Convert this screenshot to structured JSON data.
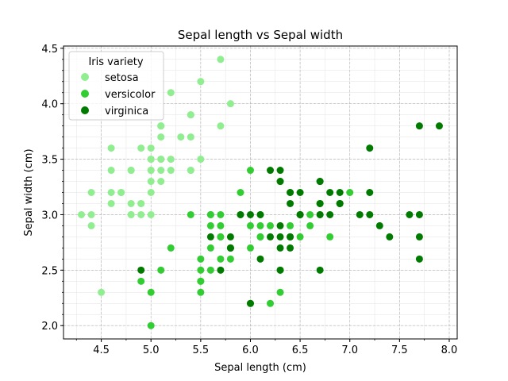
{
  "chart_data": {
    "type": "scatter",
    "title": "Sepal length vs Sepal width",
    "xlabel": "Sepal length (cm)",
    "ylabel": "Sepal width (cm)",
    "xlim": [
      4.12,
      8.08
    ],
    "ylim": [
      1.88,
      4.52
    ],
    "x_ticks": [
      4.5,
      5.0,
      5.5,
      6.0,
      6.5,
      7.0,
      7.5,
      8.0
    ],
    "x_tick_labels": [
      "4.5",
      "5.0",
      "5.5",
      "6.0",
      "6.5",
      "7.0",
      "7.5",
      "8.0"
    ],
    "y_ticks": [
      2.0,
      2.5,
      3.0,
      3.5,
      4.0,
      4.5
    ],
    "y_tick_labels": [
      "2.0",
      "2.5",
      "3.0",
      "3.5",
      "4.0",
      "4.5"
    ],
    "grid": true,
    "legend": {
      "title": "Iris variety",
      "placement": "upper-left"
    },
    "series": [
      {
        "name": "setosa",
        "color": "#90ee90",
        "x": [
          5.1,
          4.9,
          4.7,
          4.6,
          5.0,
          5.4,
          4.6,
          5.0,
          4.4,
          4.9,
          5.4,
          4.8,
          4.8,
          4.3,
          5.8,
          5.7,
          5.4,
          5.1,
          5.7,
          5.1,
          5.4,
          5.1,
          4.6,
          5.1,
          4.8,
          5.0,
          5.0,
          5.2,
          5.2,
          4.7,
          4.8,
          5.4,
          5.2,
          5.5,
          4.9,
          5.0,
          5.5,
          4.9,
          4.4,
          5.1,
          5.0,
          4.5,
          4.4,
          5.0,
          5.1,
          4.8,
          5.1,
          4.6,
          5.3,
          5.0
        ],
        "y": [
          3.5,
          3.0,
          3.2,
          3.1,
          3.6,
          3.9,
          3.4,
          3.4,
          2.9,
          3.1,
          3.7,
          3.4,
          3.0,
          3.0,
          4.0,
          4.4,
          3.9,
          3.5,
          3.8,
          3.8,
          3.4,
          3.7,
          3.6,
          3.3,
          3.4,
          3.0,
          3.4,
          3.5,
          3.4,
          3.2,
          3.1,
          3.4,
          4.1,
          4.2,
          3.1,
          3.2,
          3.5,
          3.6,
          3.0,
          3.4,
          3.5,
          2.3,
          3.2,
          3.5,
          3.8,
          3.0,
          3.8,
          3.2,
          3.7,
          3.3
        ]
      },
      {
        "name": "versicolor",
        "color": "#32cd32",
        "x": [
          7.0,
          6.4,
          6.9,
          5.5,
          6.5,
          5.7,
          6.3,
          4.9,
          6.6,
          5.2,
          5.0,
          5.9,
          6.0,
          6.1,
          5.6,
          6.7,
          5.6,
          5.8,
          6.2,
          5.6,
          5.9,
          6.1,
          6.3,
          6.1,
          6.4,
          6.6,
          6.8,
          6.7,
          6.0,
          5.7,
          5.5,
          5.5,
          5.8,
          6.0,
          5.4,
          6.0,
          6.7,
          6.3,
          5.6,
          5.5,
          5.5,
          6.1,
          5.8,
          5.0,
          5.6,
          5.7,
          5.7,
          6.2,
          5.1,
          5.7
        ],
        "y": [
          3.2,
          3.2,
          3.1,
          2.3,
          2.8,
          2.8,
          3.3,
          2.4,
          2.9,
          2.7,
          2.0,
          3.0,
          2.2,
          2.9,
          2.9,
          3.1,
          3.0,
          2.7,
          2.2,
          2.5,
          3.2,
          2.8,
          2.5,
          2.8,
          2.9,
          3.0,
          2.8,
          3.0,
          2.9,
          2.6,
          2.4,
          2.4,
          2.7,
          2.7,
          3.0,
          3.4,
          3.1,
          2.3,
          3.0,
          2.5,
          2.6,
          3.0,
          2.6,
          2.3,
          2.7,
          3.0,
          2.9,
          2.9,
          2.5,
          2.8
        ]
      },
      {
        "name": "virginica",
        "color": "#007b00",
        "x": [
          6.3,
          5.8,
          7.1,
          6.3,
          6.5,
          7.6,
          4.9,
          7.3,
          6.7,
          7.2,
          6.5,
          6.4,
          6.8,
          5.7,
          5.8,
          6.4,
          6.5,
          7.7,
          7.7,
          6.0,
          6.9,
          5.6,
          7.7,
          6.3,
          6.7,
          7.2,
          6.2,
          6.1,
          6.4,
          7.2,
          7.4,
          7.9,
          6.4,
          6.3,
          6.1,
          7.7,
          6.3,
          6.4,
          6.0,
          6.9,
          6.7,
          6.9,
          5.8,
          6.8,
          6.7,
          6.7,
          6.3,
          6.5,
          6.2,
          5.9
        ],
        "y": [
          3.3,
          2.7,
          3.0,
          2.9,
          3.0,
          3.0,
          2.5,
          2.9,
          2.5,
          3.6,
          3.2,
          2.7,
          3.0,
          2.5,
          2.8,
          3.2,
          3.0,
          3.8,
          2.6,
          2.2,
          3.2,
          2.8,
          2.8,
          2.7,
          3.3,
          3.2,
          2.8,
          3.0,
          2.8,
          3.0,
          2.8,
          3.8,
          2.8,
          2.8,
          2.6,
          3.0,
          3.4,
          3.1,
          3.0,
          3.1,
          3.1,
          3.1,
          2.7,
          3.2,
          3.3,
          3.0,
          2.5,
          3.0,
          3.4,
          3.0
        ]
      }
    ]
  }
}
